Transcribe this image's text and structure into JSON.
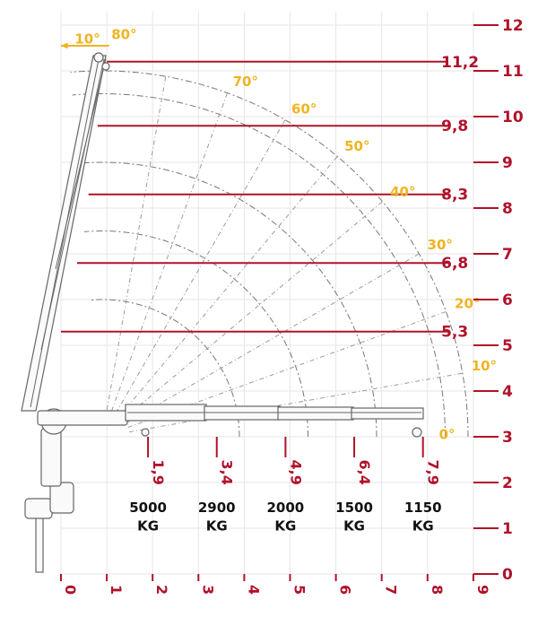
{
  "chart_data": {
    "type": "diagram",
    "y_ticks": [
      "0",
      "1",
      "2",
      "3",
      "4",
      "5",
      "6",
      "7",
      "8",
      "9",
      "10",
      "11",
      "12"
    ],
    "x_ticks": [
      "0",
      "1",
      "2",
      "3",
      "4",
      "5",
      "6",
      "7",
      "8",
      "9"
    ],
    "height_lines": [
      {
        "label": "11,2",
        "y": 11.2,
        "x_start": 1.0
      },
      {
        "label": "9,8",
        "y": 9.8,
        "x_start": 0.8
      },
      {
        "label": "8,3",
        "y": 8.3,
        "x_start": 0.6
      },
      {
        "label": "6,8",
        "y": 6.8,
        "x_start": 0.35
      },
      {
        "label": "5,3",
        "y": 5.3,
        "x_start": 0.0
      }
    ],
    "reach_marks": [
      {
        "label": "1,9",
        "x": 1.9
      },
      {
        "label": "3,4",
        "x": 3.4
      },
      {
        "label": "4,9",
        "x": 4.9
      },
      {
        "label": "6,4",
        "x": 6.4
      },
      {
        "label": "7,9",
        "x": 7.9
      }
    ],
    "angles": [
      {
        "label": "0°",
        "deg": 0
      },
      {
        "label": "10°",
        "deg": 10
      },
      {
        "label": "20°",
        "deg": 20
      },
      {
        "label": "30°",
        "deg": 30
      },
      {
        "label": "40°",
        "deg": 40
      },
      {
        "label": "50°",
        "deg": 50
      },
      {
        "label": "60°",
        "deg": 60
      },
      {
        "label": "70°",
        "deg": 70
      },
      {
        "label": "80°",
        "deg": 80
      },
      {
        "label": "10°",
        "deg": 100
      }
    ],
    "loads": [
      {
        "value": "5000",
        "unit": "KG",
        "x": 1.9
      },
      {
        "value": "2900",
        "unit": "KG",
        "x": 3.4
      },
      {
        "value": "2000",
        "unit": "KG",
        "x": 4.9
      },
      {
        "value": "1500",
        "unit": "KG",
        "x": 6.4
      },
      {
        "value": "1150",
        "unit": "KG",
        "x": 7.9
      }
    ],
    "colors": {
      "primary": "#b0122a",
      "accent": "#f0b323",
      "text": "#111111"
    }
  }
}
